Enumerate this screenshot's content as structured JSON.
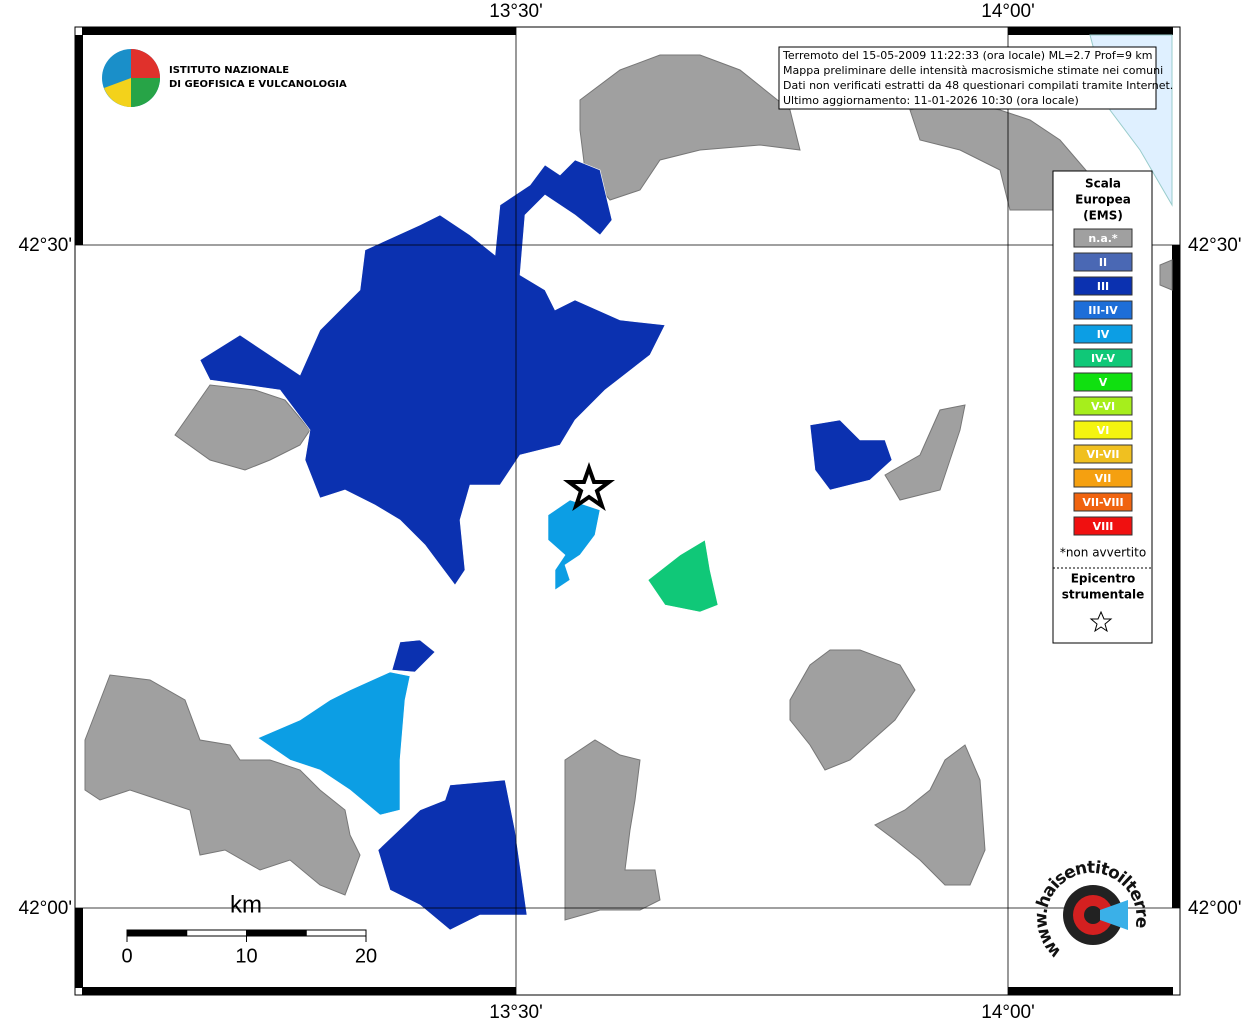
{
  "header": {
    "institute": [
      "ISTITUTO NAZIONALE",
      "DI GEOFISICA E VULCANOLOGIA"
    ],
    "info": [
      "Terremoto del 15-05-2009 11:22:33 (ora locale) ML=2.7 Prof=9 km",
      "Mappa preliminare delle intensità macrosismiche stimate nei comuni",
      "Dati non verificati estratti da 48 questionari compilati tramite Internet.",
      "Ultimo aggiornamento: 11-01-2026 10:30 (ora locale)"
    ]
  },
  "grid": {
    "lon_labels": [
      "13°30'",
      "14°00'"
    ],
    "lat_labels": [
      "42°30'",
      "42°00'"
    ]
  },
  "legend": {
    "title": [
      "Scala",
      "Europea",
      "(EMS)"
    ],
    "items": [
      {
        "label": "n.a.*",
        "color": "#a0a0a0"
      },
      {
        "label": "II",
        "color": "#4a68b4"
      },
      {
        "label": "III",
        "color": "#0b31b0"
      },
      {
        "label": "III-IV",
        "color": "#1d6ed8"
      },
      {
        "label": "IV",
        "color": "#0c9ee4"
      },
      {
        "label": "IV-V",
        "color": "#10c878"
      },
      {
        "label": "V",
        "color": "#10e010"
      },
      {
        "label": "V-VI",
        "color": "#a6ee1c"
      },
      {
        "label": "VI",
        "color": "#f4f410"
      },
      {
        "label": "VI-VII",
        "color": "#f0c020"
      },
      {
        "label": "VII",
        "color": "#f5a010"
      },
      {
        "label": "VII-VIII",
        "color": "#f06410"
      },
      {
        "label": "VIII",
        "color": "#f01010"
      }
    ],
    "note": "*non avvertito",
    "epicenter": [
      "Epicentro",
      "strumentale"
    ]
  },
  "scale_bar": {
    "unit": "km",
    "ticks": [
      0,
      10,
      20
    ]
  },
  "site": "www.haisentitoilterremoto.it"
}
